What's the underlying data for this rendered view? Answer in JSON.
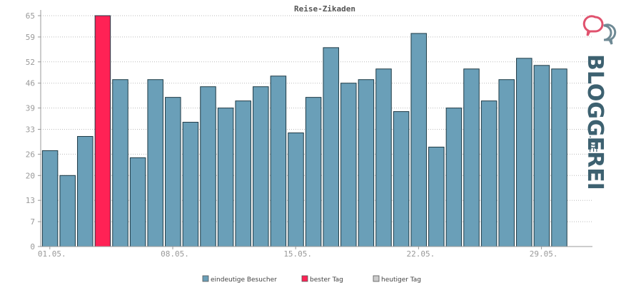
{
  "chart_data": {
    "type": "bar",
    "title": "Reise-Zikaden",
    "xlabel": "",
    "ylabel": "",
    "ylim": [
      0,
      65
    ],
    "y_ticks": [
      0,
      7,
      13,
      20,
      26,
      33,
      39,
      46,
      52,
      59,
      65
    ],
    "x_tick_labels": [
      "01.05.",
      "08.05.",
      "15.05.",
      "22.05.",
      "29.05."
    ],
    "x_tick_days": [
      1,
      8,
      15,
      22,
      29
    ],
    "grid": true,
    "legend_position": "bottom",
    "series": [
      {
        "name": "eindeutige Besucher",
        "color": "#6a9fb8",
        "days": [
          1,
          2,
          3,
          5,
          6,
          7,
          8,
          9,
          10,
          11,
          12,
          13,
          14,
          15,
          16,
          17,
          18,
          19,
          20,
          21,
          22,
          23,
          24,
          25,
          26,
          27,
          28,
          29,
          30
        ],
        "values": [
          27,
          20,
          31,
          47,
          25,
          47,
          42,
          35,
          45,
          39,
          41,
          45,
          48,
          32,
          42,
          56,
          46,
          47,
          50,
          38,
          60,
          28,
          39,
          50,
          41,
          47,
          53,
          51,
          50
        ]
      },
      {
        "name": "bester Tag",
        "color": "#ff2255",
        "days": [
          4
        ],
        "values": [
          65
        ]
      },
      {
        "name": "heutiger Tag",
        "color": "#cccccc",
        "days": [],
        "values": []
      }
    ]
  },
  "legend": [
    {
      "label": "eindeutige Besucher",
      "color": "#6a9fb8"
    },
    {
      "label": "bester Tag",
      "color": "#ff2255"
    },
    {
      "label": "heutiger Tag",
      "color": "#cccccc"
    }
  ],
  "watermark": {
    "text": "BLOGGEREI",
    "suffix": ".DE",
    "color": "#3d6170",
    "accent": "#e0526e"
  }
}
